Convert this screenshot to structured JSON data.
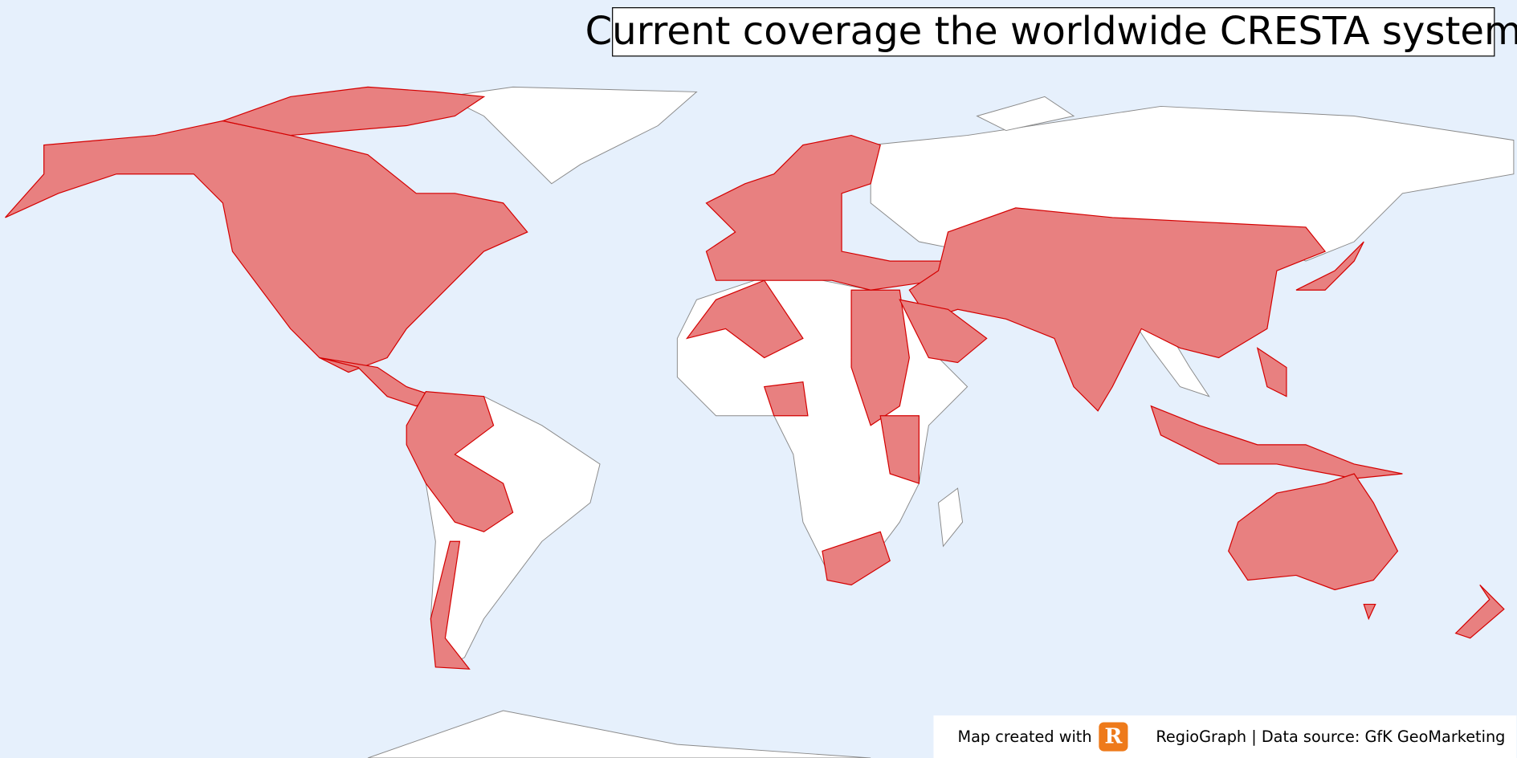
{
  "header": {
    "title": "Current coverage the worldwide CRESTA system"
  },
  "footer": {
    "created_with": "Map created with",
    "logo": "R",
    "source": "RegioGraph | Data source: GfK GeoMarketing"
  }
}
